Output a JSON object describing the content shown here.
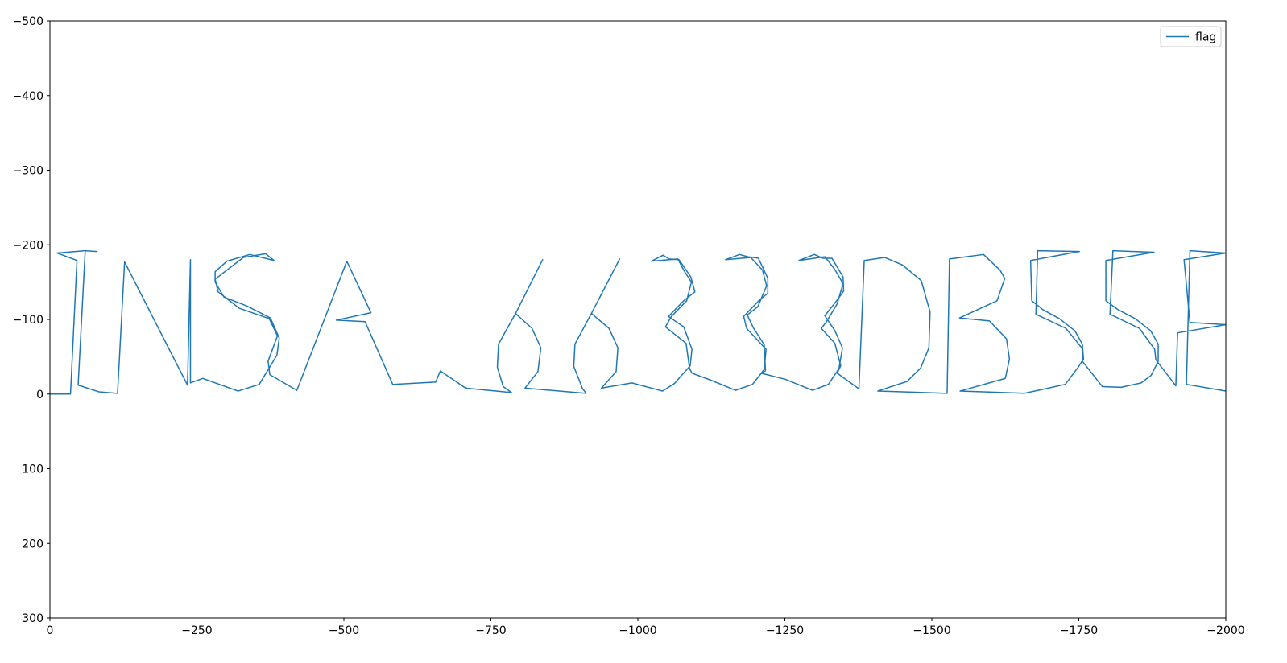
{
  "chart_data": {
    "type": "line",
    "title": "",
    "xlabel": "",
    "ylabel": "",
    "xlim": [
      0,
      -2000
    ],
    "ylim": [
      300,
      -500
    ],
    "x_ticks": [
      0,
      -250,
      -500,
      -750,
      -1000,
      -1250,
      -1500,
      -1750,
      -2000
    ],
    "x_tick_labels": [
      "0",
      "−250",
      "−500",
      "−750",
      "−1000",
      "−1250",
      "−1500",
      "−1750",
      "−2000"
    ],
    "y_ticks": [
      -500,
      -400,
      -300,
      -200,
      -100,
      0,
      100,
      200,
      300
    ],
    "y_tick_labels": [
      "−500",
      "−400",
      "−300",
      "−200",
      "−100",
      "0",
      "100",
      "200",
      "300"
    ],
    "grid": false,
    "legend": {
      "position": "top-right",
      "entries": [
        "flag"
      ]
    },
    "series": [
      {
        "name": "flag",
        "color": "#1f77b4",
        "points": [
          [
            0,
            0
          ],
          [
            -35,
            0
          ],
          [
            -46,
            -179
          ],
          [
            -12,
            -189
          ],
          [
            -60,
            -192
          ],
          [
            -80,
            -191
          ],
          [
            -60,
            -192
          ],
          [
            -48,
            -12
          ],
          [
            -83,
            -3
          ],
          [
            -115,
            -1
          ],
          [
            -127,
            -177
          ],
          [
            -234,
            -12
          ],
          [
            -239,
            -180
          ],
          [
            -239,
            -15
          ],
          [
            -260,
            -21
          ],
          [
            -320,
            -4
          ],
          [
            -356,
            -13
          ],
          [
            -386,
            -52
          ],
          [
            -390,
            -75
          ],
          [
            -375,
            -102
          ],
          [
            -335,
            -118
          ],
          [
            -296,
            -130
          ],
          [
            -281,
            -150
          ],
          [
            -281,
            -164
          ],
          [
            -301,
            -178
          ],
          [
            -340,
            -187
          ],
          [
            -381,
            -179
          ],
          [
            -367,
            -188
          ],
          [
            -329,
            -183
          ],
          [
            -281,
            -154
          ],
          [
            -286,
            -137
          ],
          [
            -322,
            -115
          ],
          [
            -373,
            -101
          ],
          [
            -387,
            -78
          ],
          [
            -371,
            -44
          ],
          [
            -374,
            -26
          ],
          [
            -420,
            -5
          ],
          [
            -505,
            -178
          ],
          [
            -546,
            -109
          ],
          [
            -487,
            -99
          ],
          [
            -536,
            -97
          ],
          [
            -583,
            -13
          ],
          [
            -656,
            -16
          ],
          [
            -664,
            -31
          ],
          [
            -707,
            -8
          ],
          [
            -785,
            -2
          ],
          [
            -771,
            -10
          ],
          [
            -761,
            -36
          ],
          [
            -763,
            -67
          ],
          [
            -792,
            -108
          ],
          [
            -838,
            -180
          ],
          [
            -792,
            -108
          ],
          [
            -820,
            -88
          ],
          [
            -835,
            -62
          ],
          [
            -830,
            -30
          ],
          [
            -808,
            -8
          ],
          [
            -912,
            -1
          ],
          [
            -906,
            -7
          ],
          [
            -891,
            -37
          ],
          [
            -893,
            -67
          ],
          [
            -921,
            -108
          ],
          [
            -969,
            -181
          ],
          [
            -921,
            -108
          ],
          [
            -951,
            -88
          ],
          [
            -966,
            -62
          ],
          [
            -963,
            -30
          ],
          [
            -938,
            -8
          ],
          [
            -990,
            -15
          ],
          [
            -1042,
            -4
          ],
          [
            -1062,
            -14
          ],
          [
            -1089,
            -38
          ],
          [
            -1092,
            -60
          ],
          [
            -1078,
            -90
          ],
          [
            -1052,
            -104
          ],
          [
            -1078,
            -125
          ],
          [
            -1097,
            -137
          ],
          [
            -1090,
            -157
          ],
          [
            -1070,
            -180
          ],
          [
            -1053,
            -181
          ],
          [
            -1043,
            -186
          ],
          [
            -1023,
            -178
          ],
          [
            -1068,
            -181
          ],
          [
            -1078,
            -166
          ],
          [
            -1091,
            -150
          ],
          [
            -1083,
            -125
          ],
          [
            -1057,
            -104
          ],
          [
            -1047,
            -90
          ],
          [
            -1082,
            -68
          ],
          [
            -1088,
            -34
          ],
          [
            -1092,
            -28
          ],
          [
            -1123,
            -19
          ],
          [
            -1166,
            -5
          ],
          [
            -1195,
            -13
          ],
          [
            -1215,
            -33
          ],
          [
            -1218,
            -60
          ],
          [
            -1205,
            -71
          ],
          [
            -1185,
            -88
          ],
          [
            -1180,
            -104
          ],
          [
            -1208,
            -127
          ],
          [
            -1221,
            -135
          ],
          [
            -1221,
            -155
          ],
          [
            -1205,
            -182
          ],
          [
            -1187,
            -184
          ],
          [
            -1173,
            -187
          ],
          [
            -1149,
            -180
          ],
          [
            -1192,
            -183
          ],
          [
            -1212,
            -166
          ],
          [
            -1219,
            -145
          ],
          [
            -1204,
            -117
          ],
          [
            -1186,
            -106
          ],
          [
            -1197,
            -88
          ],
          [
            -1215,
            -66
          ],
          [
            -1217,
            -31
          ],
          [
            -1209,
            -28
          ],
          [
            -1250,
            -20
          ],
          [
            -1297,
            -5
          ],
          [
            -1324,
            -13
          ],
          [
            -1342,
            -34
          ],
          [
            -1348,
            -62
          ],
          [
            -1335,
            -85
          ],
          [
            -1318,
            -105
          ],
          [
            -1338,
            -125
          ],
          [
            -1350,
            -138
          ],
          [
            -1349,
            -157
          ],
          [
            -1330,
            -182
          ],
          [
            -1315,
            -182
          ],
          [
            -1300,
            -187
          ],
          [
            -1274,
            -179
          ],
          [
            -1318,
            -184
          ],
          [
            -1335,
            -167
          ],
          [
            -1349,
            -148
          ],
          [
            -1339,
            -121
          ],
          [
            -1320,
            -96
          ],
          [
            -1312,
            -88
          ],
          [
            -1335,
            -68
          ],
          [
            -1345,
            -38
          ],
          [
            -1339,
            -28
          ],
          [
            -1376,
            -7
          ],
          [
            -1385,
            -179
          ],
          [
            -1420,
            -183
          ],
          [
            -1450,
            -173
          ],
          [
            -1482,
            -152
          ],
          [
            -1497,
            -110
          ],
          [
            -1495,
            -62
          ],
          [
            -1481,
            -35
          ],
          [
            -1458,
            -17
          ],
          [
            -1408,
            -4
          ],
          [
            -1526,
            -1
          ],
          [
            -1530,
            -181
          ],
          [
            -1588,
            -187
          ],
          [
            -1616,
            -166
          ],
          [
            -1624,
            -155
          ],
          [
            -1611,
            -125
          ],
          [
            -1547,
            -102
          ],
          [
            -1598,
            -98
          ],
          [
            -1627,
            -74
          ],
          [
            -1632,
            -47
          ],
          [
            -1625,
            -21
          ],
          [
            -1548,
            -4
          ],
          [
            -1657,
            -1
          ],
          [
            -1681,
            -5
          ],
          [
            -1727,
            -13
          ],
          [
            -1749,
            -36
          ],
          [
            -1758,
            -47
          ],
          [
            -1756,
            -67
          ],
          [
            -1743,
            -85
          ],
          [
            -1717,
            -101
          ],
          [
            -1689,
            -113
          ],
          [
            -1670,
            -125
          ],
          [
            -1668,
            -179
          ],
          [
            -1751,
            -191
          ],
          [
            -1680,
            -192
          ],
          [
            -1677,
            -107
          ],
          [
            -1728,
            -88
          ],
          [
            -1756,
            -61
          ],
          [
            -1756,
            -44
          ],
          [
            -1790,
            -10
          ],
          [
            -1822,
            -9
          ],
          [
            -1856,
            -15
          ],
          [
            -1873,
            -25
          ],
          [
            -1885,
            -44
          ],
          [
            -1885,
            -67
          ],
          [
            -1872,
            -85
          ],
          [
            -1846,
            -101
          ],
          [
            -1817,
            -113
          ],
          [
            -1796,
            -125
          ],
          [
            -1796,
            -179
          ],
          [
            -1878,
            -190
          ],
          [
            -1808,
            -192
          ],
          [
            -1803,
            -107
          ],
          [
            -1853,
            -88
          ],
          [
            -1879,
            -60
          ],
          [
            -1881,
            -46
          ],
          [
            -1915,
            -11
          ],
          [
            -1918,
            -82
          ],
          [
            -2000,
            -93
          ],
          [
            -1939,
            -96
          ],
          [
            -1929,
            -180
          ],
          [
            -2000,
            -189
          ],
          [
            -1939,
            -192
          ],
          [
            -1933,
            -13
          ],
          [
            -2000,
            -4
          ]
        ]
      }
    ]
  }
}
